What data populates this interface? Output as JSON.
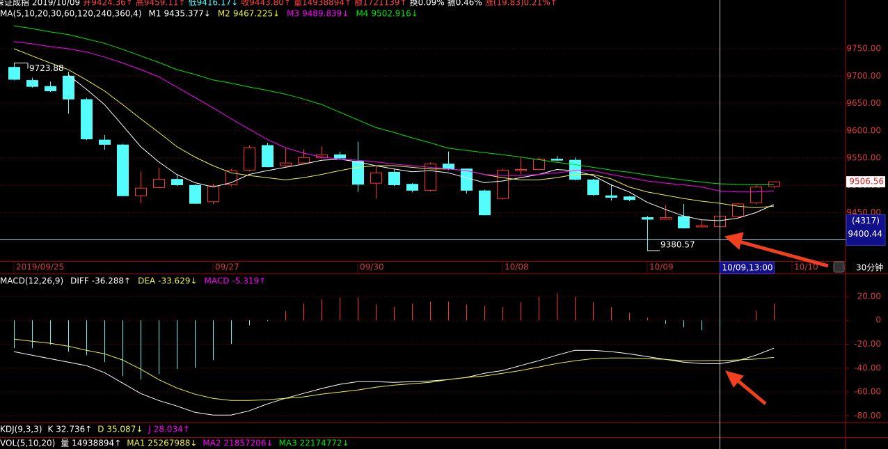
{
  "chart_data": [
    {
      "type": "candlestick",
      "info_bar": [
        {
          "text": "深证成指",
          "color": "#ffffff"
        },
        {
          "text": "2019/10/09",
          "color": "#ffffff"
        },
        {
          "text": "开9424.36↑",
          "color": "#ff4040"
        },
        {
          "text": "高9459.11↑",
          "color": "#ff4040"
        },
        {
          "text": "低9416.17↓",
          "color": "#54fcfc"
        },
        {
          "text": "收9443.80↑",
          "color": "#ff4040"
        },
        {
          "text": "量14938894↑",
          "color": "#ff4040"
        },
        {
          "text": "额1721139↑",
          "color": "#ff4040"
        },
        {
          "text": "换0.09%",
          "color": "#ffffff"
        },
        {
          "text": "振0.46%",
          "color": "#ffffff"
        },
        {
          "text": "涨(19.83)0.21%↑",
          "color": "#ff4040"
        }
      ],
      "ma_title": "MA(5,10,20,30,60,120,240,360,4)",
      "categories": [
        "2019/09/25",
        null,
        null,
        null,
        null,
        null,
        null,
        null,
        null,
        null,
        null,
        "09/27",
        null,
        null,
        null,
        null,
        null,
        null,
        null,
        "09/30",
        null,
        null,
        null,
        null,
        null,
        null,
        null,
        "10/08",
        null,
        null,
        null,
        null,
        null,
        null,
        null,
        "10/09",
        null,
        null,
        null,
        null,
        null,
        null,
        null
      ],
      "next_date": "10/10",
      "open": [
        9716,
        9692,
        9681,
        9700,
        9657,
        9583,
        9574,
        9481,
        9496,
        9511,
        9500,
        9470,
        9501,
        9528,
        9573,
        9536,
        9541,
        9551,
        9556,
        9544,
        9504,
        9524,
        9502,
        9491,
        9539,
        9530,
        9490,
        9476,
        9527,
        9529,
        9548,
        9546,
        9510,
        9481,
        9479,
        9441,
        9438,
        9443,
        9424,
        9424.36,
        9443,
        9468,
        9498
      ],
      "high": [
        9723.88,
        9697,
        9690,
        9708,
        9660,
        9592,
        9576,
        9526,
        9532,
        9520,
        9502,
        9503,
        9530,
        9573,
        9578,
        9569,
        9566,
        9571,
        9562,
        9580,
        9535,
        9530,
        9504,
        9542,
        9562,
        9531,
        9492,
        9531,
        9552,
        9551,
        9554,
        9551,
        9512,
        9502,
        9481,
        9444,
        9464,
        9466,
        9437,
        9459.11,
        9468,
        9502,
        9507
      ],
      "low": [
        9692,
        9679,
        9671,
        9631,
        9583,
        9565,
        9480,
        9467,
        9495,
        9499,
        9466,
        9466,
        9498,
        9526,
        9533,
        9533,
        9539,
        9549,
        9548,
        9488,
        9476,
        9499,
        9487,
        9489,
        9528,
        9485,
        9445,
        9474,
        9520,
        9527,
        9544,
        9509,
        9481,
        9472,
        9471,
        9380.57,
        9437,
        9421,
        9423,
        9416.17,
        9440,
        9465,
        9495
      ],
      "close": [
        9694,
        9681,
        9673,
        9658,
        9585,
        9575,
        9481,
        9495,
        9511,
        9501,
        9467,
        9499,
        9527,
        9569,
        9534,
        9541,
        9551,
        9556,
        9550,
        9502,
        9523,
        9501,
        9491,
        9539,
        9530,
        9491,
        9446,
        9528,
        9529,
        9548,
        9546,
        9511,
        9483,
        9478,
        9474,
        9438,
        9441,
        9422,
        9426,
        9443.8,
        9466,
        9497,
        9506.56
      ],
      "up_color": "#ff3232",
      "down_color": "#54fcfc",
      "series": [
        {
          "name": "M1",
          "legend_value": "9435.377↓",
          "color": "#ffffff",
          "values": [
            null,
            null,
            null,
            9702,
            9676,
            9648,
            9610,
            9571,
            9543,
            9520,
            9505,
            9497,
            9505,
            9520,
            9527,
            9533,
            9539,
            9546,
            9548,
            9543,
            9536,
            9530,
            9525,
            9527,
            9523,
            9514,
            9505,
            9508,
            9514,
            9520,
            9529,
            9527,
            9518,
            9501,
            9488,
            9469,
            9456,
            9444,
            9437,
            9435.377,
            9440,
            9450,
            9465
          ]
        },
        {
          "name": "M2",
          "legend_value": "9467.225↓",
          "color": "#f0f040",
          "values": [
            9750,
            9737,
            9724,
            9712,
            9693,
            9673,
            9648,
            9622,
            9597,
            9571,
            9552,
            9536,
            9523,
            9518,
            9514,
            9510,
            9514,
            9520,
            9527,
            9533,
            9536,
            9536,
            9533,
            9530,
            9530,
            9527,
            9520,
            9514,
            9510,
            9510,
            9514,
            9520,
            9520,
            9512,
            9497,
            9488,
            9482,
            9476,
            9471,
            9467.225,
            9462,
            9459,
            9462
          ]
        },
        {
          "name": "M3",
          "legend_value": "9489.839↓",
          "color": "#ff00ff",
          "values": [
            9763,
            9759,
            9754,
            9750,
            9744,
            9735,
            9724,
            9712,
            9699,
            9680,
            9661,
            9642,
            9622,
            9603,
            9584,
            9569,
            9559,
            9552,
            9548,
            9546,
            9543,
            9539,
            9536,
            9533,
            9530,
            9527,
            9520,
            9518,
            9518,
            9520,
            9523,
            9527,
            9527,
            9520,
            9514,
            9508,
            9504,
            9501,
            9497,
            9489.839,
            9488,
            9488,
            9490
          ]
        },
        {
          "name": "M4",
          "legend_value": "9502.916↓",
          "color": "#00e600",
          "values": [
            9792,
            9787,
            9781,
            9776,
            9768,
            9760,
            9749,
            9737,
            9725,
            9712,
            9703,
            9693,
            9687,
            9680,
            9674,
            9667,
            9658,
            9648,
            9634,
            9620,
            9606,
            9597,
            9587,
            9578,
            9568,
            9564,
            9560,
            9556,
            9552,
            9547,
            9542,
            9538,
            9533,
            9528,
            9524,
            9519,
            9514,
            9510,
            9506,
            9502.916,
            9502,
            9501,
            9501
          ]
        }
      ],
      "ylim": [
        9361.5,
        9839.2
      ],
      "yticks": [
        {
          "value": 9750,
          "label": "9750.00"
        },
        {
          "value": 9700,
          "label": "9700.00"
        },
        {
          "value": 9650,
          "label": "9650.00"
        },
        {
          "value": 9600,
          "label": "9600.00"
        },
        {
          "value": 9550,
          "label": "9550.00"
        },
        {
          "value": 9500,
          "label": "9500.00"
        },
        {
          "value": 9450,
          "label": "9450.00"
        },
        {
          "value": 9400,
          "label": "9400.00"
        }
      ],
      "grid": true,
      "cursor": {
        "date": "10/09,13:00",
        "count": "(4317)",
        "price": 9400.44
      },
      "period": "30分钟"
    },
    {
      "type": "macd",
      "title": "MACD(12,26,9)",
      "histogram": {
        "name": "MACD",
        "legend_value": "-5.319↑",
        "color": "#ff00ff",
        "up_color": "#ff3232",
        "down_color": "#54fcfc",
        "values": [
          -23.3,
          -23.3,
          -20.4,
          -26.2,
          -29.2,
          -35.0,
          -46.6,
          -49.6,
          -44.9,
          -40.8,
          -39.7,
          -33.2,
          -19.8,
          -4.1,
          -0.6,
          7.6,
          14.0,
          17.5,
          19.2,
          19.2,
          13.4,
          11.1,
          14.0,
          15.7,
          15.7,
          13.4,
          12.2,
          11.1,
          15.2,
          19.8,
          22.7,
          19.8,
          15.2,
          11.1,
          6.4,
          2.3,
          -2.9,
          -5.8,
          -8.2,
          -5.319,
          0.5,
          8.2,
          14.0
        ]
      },
      "series": [
        {
          "name": "DIFF",
          "legend_value": "-36.288↑",
          "color": "#ffffff",
          "values": [
            -26.2,
            -29.2,
            -32.1,
            -35.0,
            -37.9,
            -43.7,
            -52.5,
            -61.2,
            -67.1,
            -71.7,
            -77.0,
            -79.3,
            -79.3,
            -75.8,
            -70.0,
            -65.3,
            -61.2,
            -57.1,
            -53.6,
            -51.3,
            -51.3,
            -51.9,
            -51.3,
            -50.7,
            -49.6,
            -47.8,
            -44.3,
            -42.0,
            -37.9,
            -33.8,
            -29.2,
            -25.1,
            -25.1,
            -26.2,
            -28.0,
            -30.3,
            -32.7,
            -35.0,
            -36.2,
            -36.288,
            -33.8,
            -29.2,
            -23.3
          ]
        },
        {
          "name": "DEA",
          "legend_value": "-33.629↓",
          "color": "#f0f040",
          "values": [
            -15.7,
            -17.5,
            -19.2,
            -21.6,
            -25.1,
            -28.0,
            -33.2,
            -40.8,
            -49.6,
            -56.6,
            -61.8,
            -65.3,
            -67.1,
            -67.1,
            -66.5,
            -65.3,
            -64.1,
            -61.8,
            -60.1,
            -58.3,
            -56.0,
            -54.2,
            -53.1,
            -51.9,
            -49.6,
            -47.8,
            -46.6,
            -44.3,
            -42.0,
            -39.1,
            -36.2,
            -33.8,
            -32.1,
            -31.5,
            -31.5,
            -32.1,
            -32.7,
            -33.8,
            -33.9,
            -33.629,
            -33.2,
            -32.4,
            -31.0
          ]
        }
      ],
      "ylim": [
        -85,
        38
      ],
      "yticks": [
        {
          "value": 20,
          "label": "20.00"
        },
        0,
        {
          "value": -20,
          "label": "-20.00"
        },
        {
          "value": -40,
          "label": "-40.00"
        },
        {
          "value": -60,
          "label": "-60.00"
        },
        {
          "value": -80,
          "label": "-80.00"
        }
      ],
      "grid": true
    }
  ],
  "indicator_rows": {
    "kdj": [
      {
        "text": "KDJ(9,3,3)",
        "color": "#ffffff"
      },
      {
        "text": "K 32.736↑",
        "color": "#ffffff"
      },
      {
        "text": "D 35.087↓",
        "color": "#f0f040"
      },
      {
        "text": "J 28.034↑",
        "color": "#ff00ff"
      }
    ],
    "vol": [
      {
        "text": "VOL(5,10,20)",
        "color": "#ffffff"
      },
      {
        "text": "量 14938894↑",
        "color": "#ffffff"
      },
      {
        "text": "MA1 25267988↓",
        "color": "#f0f040"
      },
      {
        "text": "MA2 21857206↓",
        "color": "#ff00ff"
      },
      {
        "text": "MA3 22174772↓",
        "color": "#00e600"
      }
    ]
  }
}
